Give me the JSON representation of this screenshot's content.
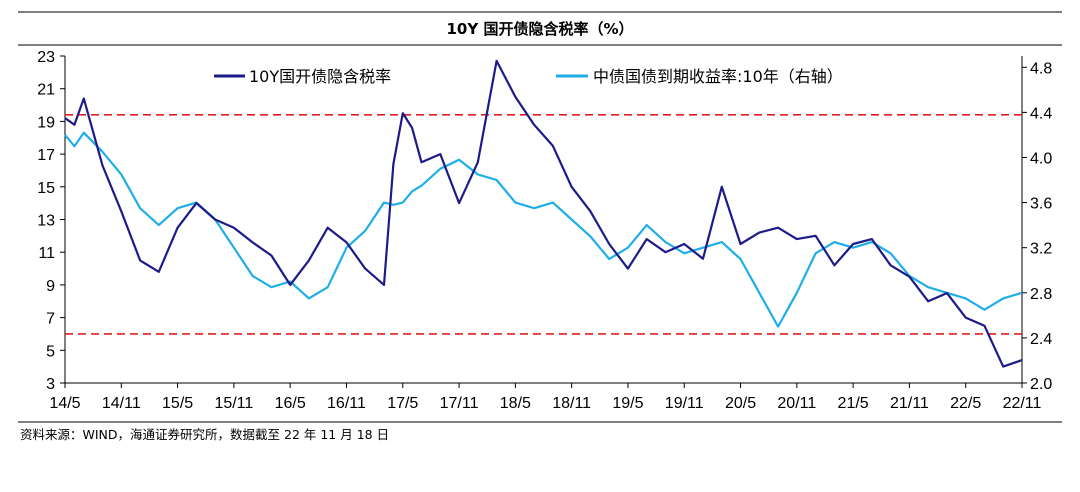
{
  "chart_data": {
    "type": "line",
    "title": "10Y 国开债隐含税率（%）",
    "x_tick_labels": [
      "14/5",
      "14/11",
      "15/5",
      "15/11",
      "16/5",
      "16/11",
      "17/5",
      "17/11",
      "18/5",
      "18/11",
      "19/5",
      "19/11",
      "20/5",
      "20/11",
      "21/5",
      "21/11",
      "22/5",
      "22/11"
    ],
    "y_left": {
      "ticks": [
        3,
        5,
        7,
        9,
        11,
        13,
        15,
        17,
        19,
        21,
        23
      ],
      "range": [
        3,
        23
      ]
    },
    "y_right": {
      "ticks": [
        "2.0",
        "2.4",
        "2.8",
        "3.2",
        "3.6",
        "4.0",
        "4.4",
        "4.8"
      ],
      "range": [
        2.0,
        4.9
      ]
    },
    "reference_lines": [
      {
        "axis": "left",
        "value": 19.4,
        "color": "#e02020",
        "style": "dashed"
      },
      {
        "axis": "left",
        "value": 6.0,
        "color": "#e02020",
        "style": "dashed"
      }
    ],
    "x_month_index": [
      0,
      1,
      2,
      4,
      6,
      8,
      10,
      12,
      14,
      16,
      18,
      20,
      22,
      24,
      26,
      28,
      30,
      32,
      34,
      35,
      36,
      37,
      38,
      40,
      42,
      44,
      46,
      48,
      50,
      52,
      54,
      56,
      58,
      60,
      62,
      64,
      66,
      68,
      70,
      72,
      74,
      76,
      78,
      80,
      82,
      84,
      86,
      88,
      90,
      92,
      94,
      96,
      98,
      100,
      102
    ],
    "series": [
      {
        "name": "10Y国开债隐含税率",
        "axis": "left",
        "color": "#1d1a8a",
        "values": [
          19.2,
          18.8,
          20.4,
          16.3,
          13.5,
          10.5,
          9.8,
          12.5,
          14.0,
          13.0,
          12.5,
          11.6,
          10.8,
          9.0,
          10.5,
          12.5,
          11.6,
          10.0,
          9.0,
          16.4,
          19.5,
          18.6,
          16.5,
          17.0,
          14.0,
          16.5,
          22.7,
          20.5,
          18.8,
          17.5,
          15.0,
          13.5,
          11.5,
          10.0,
          11.8,
          11.0,
          11.5,
          10.6,
          15.0,
          11.5,
          12.2,
          12.5,
          11.8,
          12.0,
          10.2,
          11.5,
          11.8,
          10.2,
          9.5,
          8.0,
          8.5,
          7.0,
          6.5,
          4.0,
          4.4
        ]
      },
      {
        "name": "中债国债到期收益率:10年（右轴）",
        "axis": "right",
        "color": "#1eaee8",
        "values": [
          4.2,
          4.1,
          4.22,
          4.05,
          3.85,
          3.55,
          3.4,
          3.55,
          3.6,
          3.45,
          3.2,
          2.95,
          2.85,
          2.9,
          2.75,
          2.85,
          3.2,
          3.35,
          3.6,
          3.58,
          3.6,
          3.7,
          3.75,
          3.9,
          3.98,
          3.85,
          3.8,
          3.6,
          3.55,
          3.6,
          3.45,
          3.3,
          3.1,
          3.2,
          3.4,
          3.25,
          3.15,
          3.2,
          3.25,
          3.1,
          2.8,
          2.5,
          2.8,
          3.15,
          3.25,
          3.2,
          3.25,
          3.15,
          2.95,
          2.85,
          2.8,
          2.75,
          2.65,
          2.75,
          2.8
        ]
      }
    ]
  },
  "legend": {
    "left_series": "10Y国开债隐含税率",
    "right_series": "中债国债到期收益率:10年（右轴）"
  },
  "source_note": "资料来源：WIND，海通证券研究所，数据截至 22 年 11 月 18 日"
}
